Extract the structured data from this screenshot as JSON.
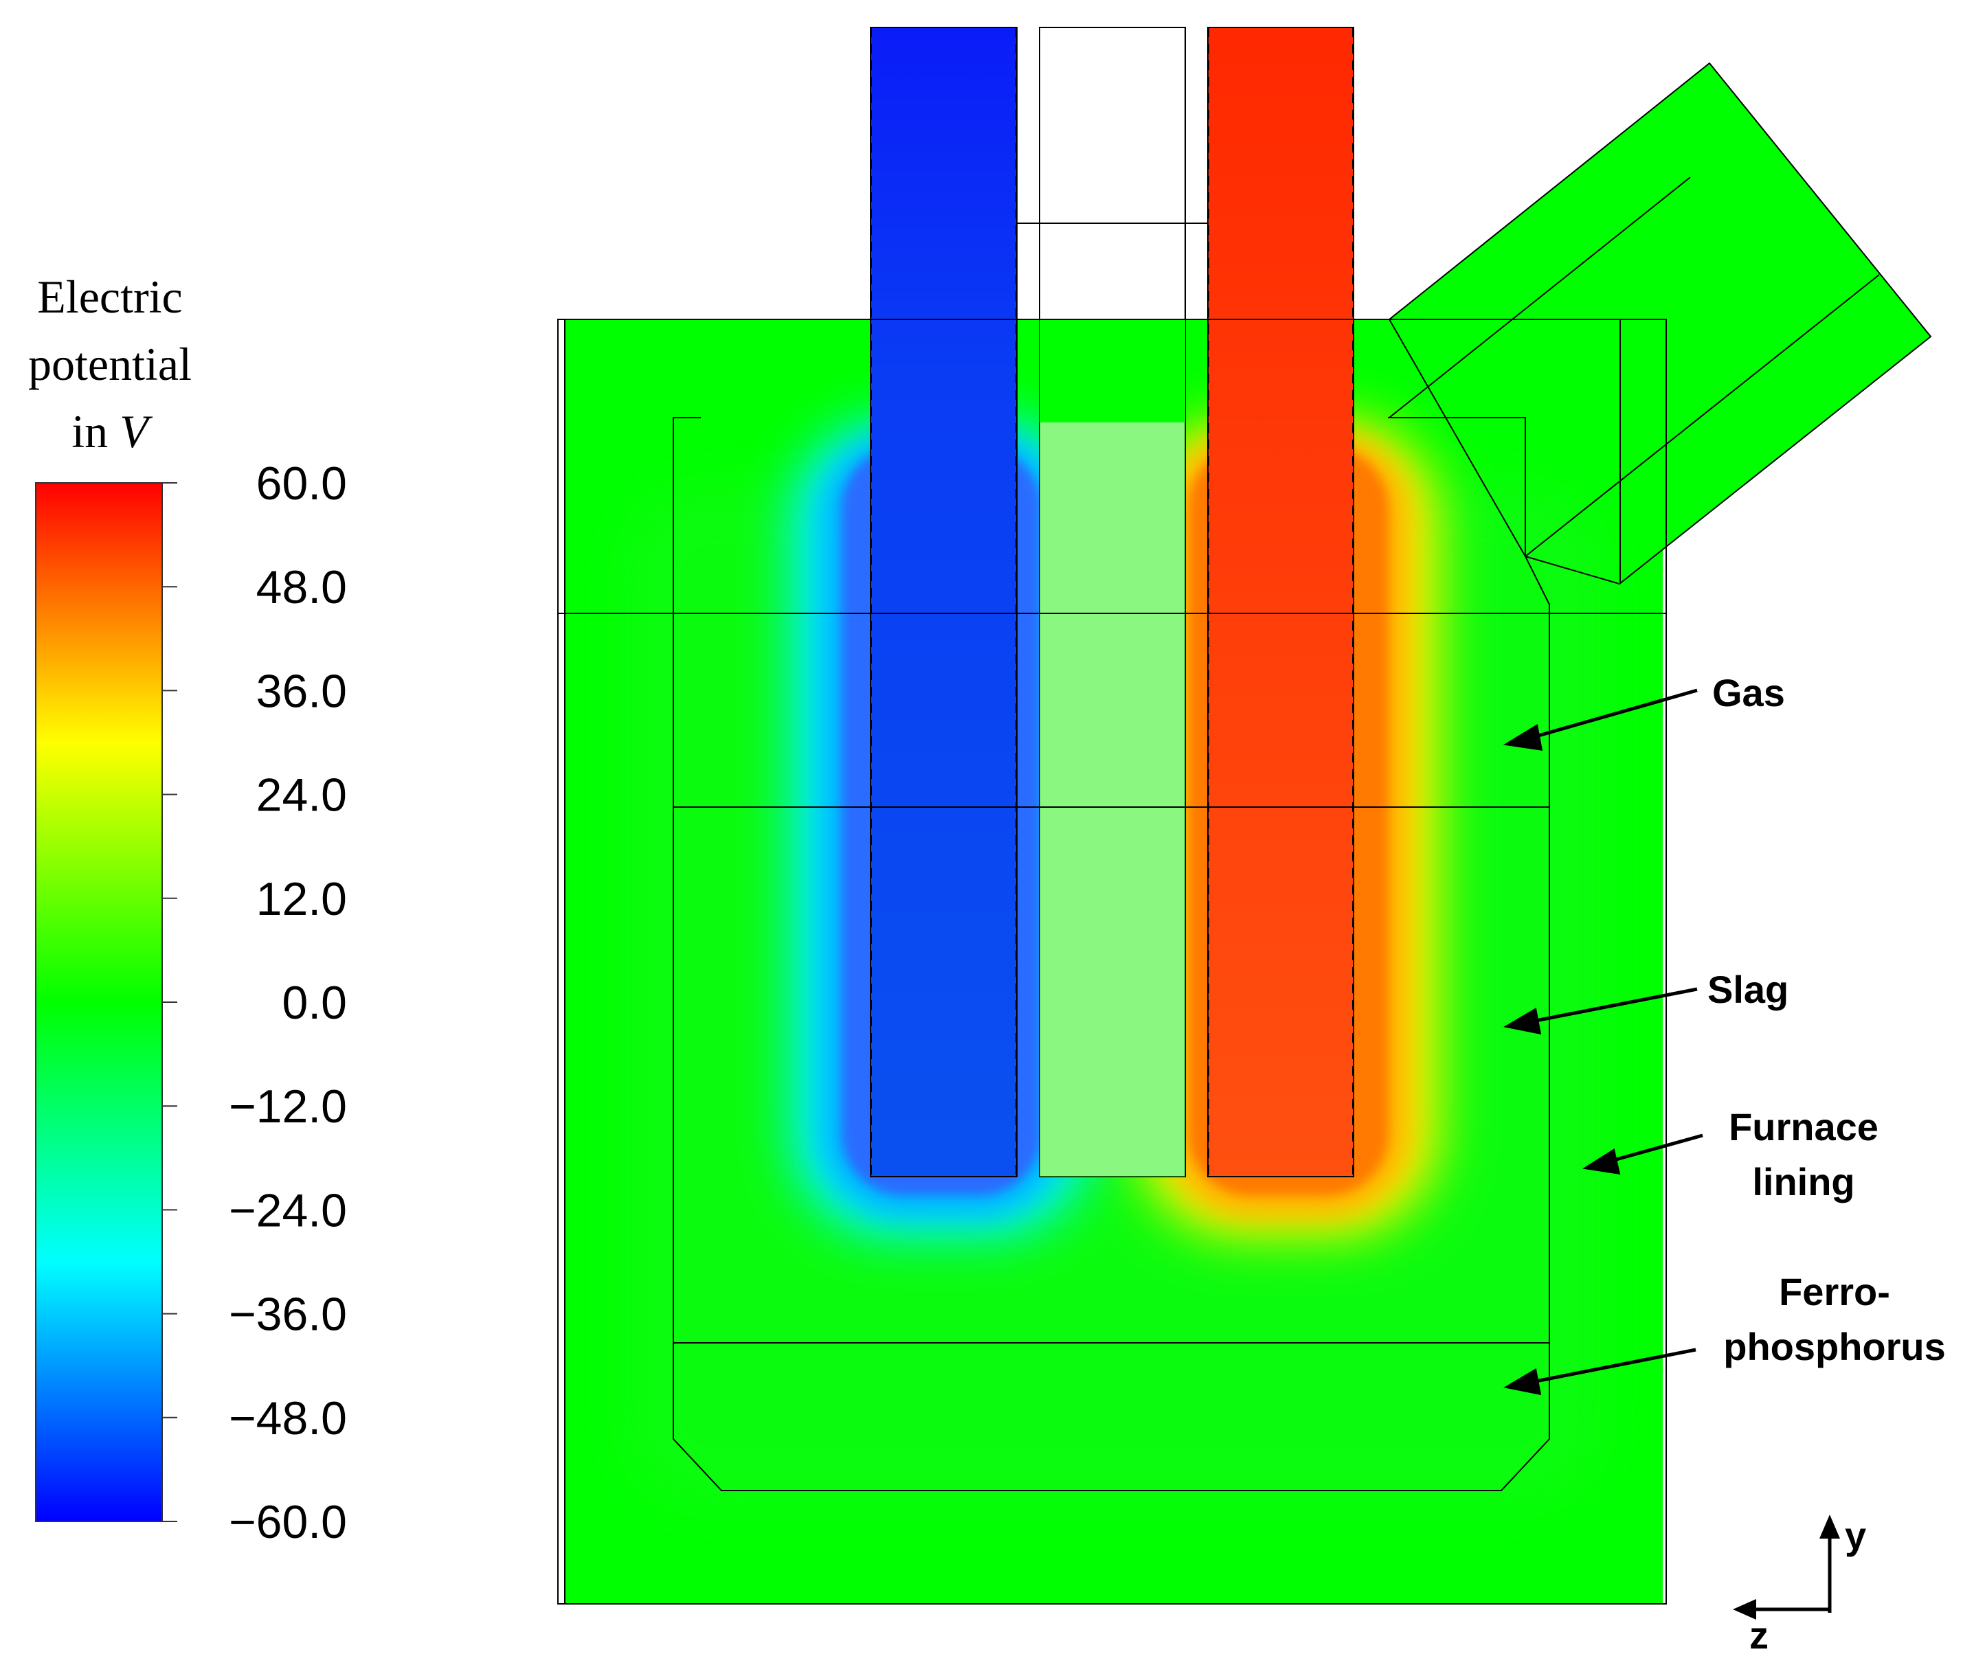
{
  "legend": {
    "title_lines": [
      "Electric",
      "potential",
      "in"
    ],
    "title_unit": "V",
    "ticks": [
      "60.0",
      "48.0",
      "36.0",
      "24.0",
      "12.0",
      "0.0",
      "−12.0",
      "−24.0",
      "−36.0",
      "−48.0",
      "−60.0"
    ],
    "range": [
      -60,
      60
    ],
    "colormap": [
      "#0000ff",
      "#00ffff",
      "#00ff00",
      "#ffff00",
      "#ff0000"
    ]
  },
  "labels": {
    "gas": "Gas",
    "slag": "Slag",
    "lining_line1": "Furnace",
    "lining_line2": "lining",
    "ferro_line1": "Ferro-",
    "ferro_line2": "phosphorus"
  },
  "axes": {
    "y": "y",
    "z": "z"
  },
  "electrodes": [
    {
      "name": "left-electrode",
      "potential": -51
    },
    {
      "name": "middle-electrode",
      "potential": null
    },
    {
      "name": "right-electrode",
      "potential": 51
    }
  ],
  "colors": {
    "background_field": "#00ff00",
    "negative_electrode": "#0a3cf0",
    "positive_electrode": "#ff3c0a",
    "outline": "#000000"
  }
}
